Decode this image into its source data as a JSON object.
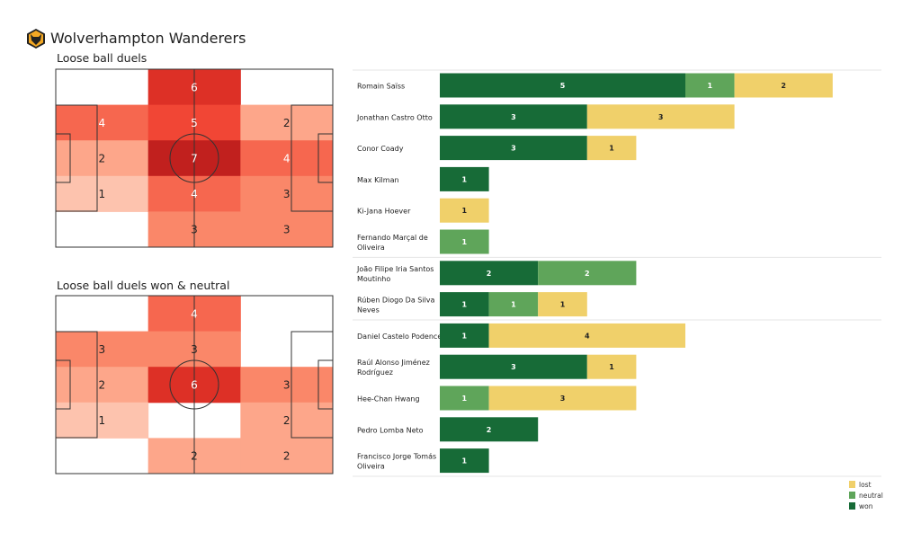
{
  "header": {
    "team": "Wolverhampton Wanderers",
    "logo": "wolves-crest-icon"
  },
  "chart_data": [
    {
      "type": "heatmap",
      "title": "Loose ball duels",
      "rows": 5,
      "cols": 3,
      "values": [
        [
          null,
          6,
          null
        ],
        [
          4,
          5,
          2
        ],
        [
          2,
          7,
          4
        ],
        [
          1,
          4,
          3
        ],
        [
          null,
          3,
          3
        ]
      ],
      "colormap": "Reds"
    },
    {
      "type": "heatmap",
      "title": "Loose ball duels won & neutral",
      "rows": 5,
      "cols": 3,
      "values": [
        [
          null,
          4,
          null
        ],
        [
          3,
          3,
          null
        ],
        [
          2,
          6,
          3
        ],
        [
          1,
          null,
          2
        ],
        [
          null,
          2,
          2
        ]
      ],
      "colormap": "Reds"
    },
    {
      "type": "bar",
      "orientation": "horizontal",
      "stacked": true,
      "categories": [
        "Romain Saïss",
        "Jonathan Castro Otto",
        "Conor  Coady",
        "Max Kilman",
        "Ki-Jana Hoever",
        "Fernando Marçal de Oliveira",
        "João Filipe Iria Santos Moutinho",
        "Rúben Diogo Da Silva Neves",
        "Daniel Castelo Podence",
        "Raúl Alonso Jiménez Rodríguez",
        "Hee-Chan Hwang",
        "Pedro Lomba Neto",
        "Francisco Jorge Tomás Oliveira"
      ],
      "groups_separated_after": [
        5,
        7
      ],
      "series": [
        {
          "name": "won",
          "color": "#176b37",
          "values": [
            5,
            3,
            3,
            1,
            0,
            0,
            2,
            1,
            1,
            3,
            0,
            2,
            1
          ]
        },
        {
          "name": "neutral",
          "color": "#5fa55a",
          "values": [
            1,
            0,
            0,
            0,
            0,
            1,
            2,
            1,
            0,
            0,
            1,
            0,
            0
          ]
        },
        {
          "name": "lost",
          "color": "#f0d06a",
          "values": [
            2,
            3,
            1,
            0,
            1,
            0,
            0,
            1,
            4,
            1,
            3,
            0,
            0
          ]
        }
      ],
      "legend": {
        "position": "bottom-right",
        "order": [
          "lost",
          "neutral",
          "won"
        ]
      }
    }
  ]
}
